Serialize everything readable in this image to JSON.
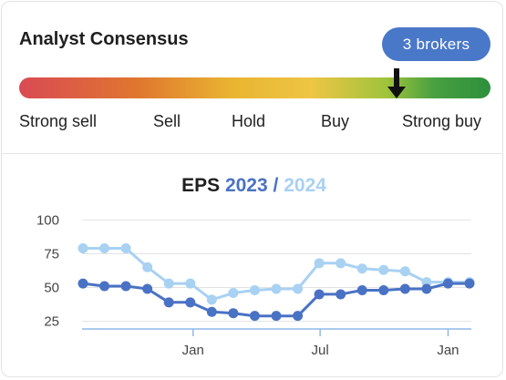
{
  "card": {
    "title": "Analyst Consensus",
    "brokers_badge": "3 brokers",
    "scale_labels": [
      "Strong sell",
      "Sell",
      "Hold",
      "Buy",
      "Strong buy"
    ],
    "consensus_position": 0.8,
    "colors": {
      "badge": "#4a78c8",
      "gradient": [
        "#d94a54",
        "#e0762f",
        "#eec544",
        "#9fc43c",
        "#2e8f3c"
      ]
    }
  },
  "chart_data": {
    "type": "line",
    "title_parts": {
      "eps": "EPS",
      "y1": "2023",
      "slash": "/",
      "y2": "2024"
    },
    "x_tick_labels": [
      "Jan",
      "Jul",
      "Jan"
    ],
    "y_ticks": [
      25,
      50,
      75,
      100
    ],
    "ylim": [
      20,
      105
    ],
    "grid": "horizontal",
    "series": [
      {
        "name": "2023",
        "color": "#4a72c4",
        "values": [
          53,
          51,
          51,
          49,
          39,
          39,
          32,
          31,
          29,
          29,
          29,
          45,
          45,
          48,
          48,
          49,
          49,
          53,
          53
        ]
      },
      {
        "name": "2024",
        "color": "#a8d1f2",
        "values": [
          79,
          79,
          79,
          65,
          53,
          53,
          41,
          46,
          48,
          49,
          49,
          68,
          68,
          64,
          63,
          62,
          54,
          54,
          54
        ]
      }
    ]
  }
}
